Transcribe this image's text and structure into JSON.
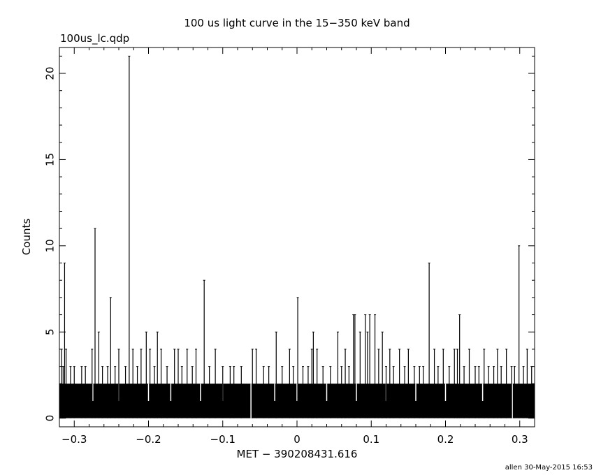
{
  "chart_data": {
    "type": "bar",
    "title": "100 us light curve in the 15−350 keV band",
    "file_label": "100us_lc.qdp",
    "xlabel": "MET − 390208431.616",
    "ylabel": "Counts",
    "footer": "allen 30-May-2015 16:53",
    "xlim": [
      -0.32,
      0.32
    ],
    "ylim": [
      -0.5,
      21.5
    ],
    "x_ticks": [
      -0.3,
      -0.2,
      -0.1,
      0,
      0.1,
      0.2,
      0.3
    ],
    "x_tick_labels": [
      "−0.3",
      "−0.2",
      "−0.1",
      "0",
      "0.1",
      "0.2",
      "0.3"
    ],
    "y_ticks": [
      0,
      5,
      10,
      15,
      20
    ],
    "y_tick_labels": [
      "0",
      "5",
      "10",
      "15",
      "20"
    ],
    "bin_width": 0.0001,
    "baseline_counts": 2,
    "grid": false,
    "legend": "none",
    "bar_color": "#000000",
    "peaks": [
      {
        "x": -0.317,
        "y": 4
      },
      {
        "x": -0.315,
        "y": 3
      },
      {
        "x": -0.313,
        "y": 9
      },
      {
        "x": -0.311,
        "y": 4
      },
      {
        "x": -0.305,
        "y": 3
      },
      {
        "x": -0.3,
        "y": 3
      },
      {
        "x": -0.29,
        "y": 3
      },
      {
        "x": -0.285,
        "y": 3
      },
      {
        "x": -0.276,
        "y": 4
      },
      {
        "x": -0.272,
        "y": 11
      },
      {
        "x": -0.267,
        "y": 5
      },
      {
        "x": -0.262,
        "y": 3
      },
      {
        "x": -0.255,
        "y": 3
      },
      {
        "x": -0.251,
        "y": 7
      },
      {
        "x": -0.245,
        "y": 3
      },
      {
        "x": -0.24,
        "y": 4
      },
      {
        "x": -0.231,
        "y": 3
      },
      {
        "x": -0.226,
        "y": 21
      },
      {
        "x": -0.221,
        "y": 4
      },
      {
        "x": -0.215,
        "y": 3
      },
      {
        "x": -0.21,
        "y": 4
      },
      {
        "x": -0.203,
        "y": 5
      },
      {
        "x": -0.198,
        "y": 4
      },
      {
        "x": -0.192,
        "y": 3
      },
      {
        "x": -0.188,
        "y": 5
      },
      {
        "x": -0.183,
        "y": 4
      },
      {
        "x": -0.175,
        "y": 3
      },
      {
        "x": -0.165,
        "y": 4
      },
      {
        "x": -0.16,
        "y": 4
      },
      {
        "x": -0.155,
        "y": 3
      },
      {
        "x": -0.148,
        "y": 4
      },
      {
        "x": -0.141,
        "y": 3
      },
      {
        "x": -0.136,
        "y": 4
      },
      {
        "x": -0.125,
        "y": 8
      },
      {
        "x": -0.118,
        "y": 3
      },
      {
        "x": -0.11,
        "y": 4
      },
      {
        "x": -0.1,
        "y": 3
      },
      {
        "x": -0.09,
        "y": 3
      },
      {
        "x": -0.085,
        "y": 3
      },
      {
        "x": -0.075,
        "y": 3
      },
      {
        "x": -0.06,
        "y": 4
      },
      {
        "x": -0.055,
        "y": 4
      },
      {
        "x": -0.045,
        "y": 3
      },
      {
        "x": -0.038,
        "y": 3
      },
      {
        "x": -0.028,
        "y": 5
      },
      {
        "x": -0.02,
        "y": 3
      },
      {
        "x": -0.01,
        "y": 4
      },
      {
        "x": -0.005,
        "y": 3
      },
      {
        "x": 0.001,
        "y": 7
      },
      {
        "x": 0.008,
        "y": 3
      },
      {
        "x": 0.015,
        "y": 3
      },
      {
        "x": 0.02,
        "y": 4
      },
      {
        "x": 0.022,
        "y": 5
      },
      {
        "x": 0.027,
        "y": 4
      },
      {
        "x": 0.035,
        "y": 3
      },
      {
        "x": 0.045,
        "y": 3
      },
      {
        "x": 0.055,
        "y": 5
      },
      {
        "x": 0.06,
        "y": 3
      },
      {
        "x": 0.065,
        "y": 4
      },
      {
        "x": 0.07,
        "y": 3
      },
      {
        "x": 0.076,
        "y": 6
      },
      {
        "x": 0.078,
        "y": 6
      },
      {
        "x": 0.085,
        "y": 5
      },
      {
        "x": 0.092,
        "y": 6
      },
      {
        "x": 0.095,
        "y": 5
      },
      {
        "x": 0.098,
        "y": 6
      },
      {
        "x": 0.105,
        "y": 6
      },
      {
        "x": 0.11,
        "y": 4
      },
      {
        "x": 0.115,
        "y": 5
      },
      {
        "x": 0.12,
        "y": 3
      },
      {
        "x": 0.125,
        "y": 4
      },
      {
        "x": 0.13,
        "y": 3
      },
      {
        "x": 0.138,
        "y": 4
      },
      {
        "x": 0.145,
        "y": 3
      },
      {
        "x": 0.15,
        "y": 4
      },
      {
        "x": 0.158,
        "y": 3
      },
      {
        "x": 0.165,
        "y": 3
      },
      {
        "x": 0.17,
        "y": 3
      },
      {
        "x": 0.178,
        "y": 9
      },
      {
        "x": 0.185,
        "y": 4
      },
      {
        "x": 0.19,
        "y": 3
      },
      {
        "x": 0.197,
        "y": 4
      },
      {
        "x": 0.205,
        "y": 3
      },
      {
        "x": 0.212,
        "y": 4
      },
      {
        "x": 0.216,
        "y": 4
      },
      {
        "x": 0.219,
        "y": 6
      },
      {
        "x": 0.225,
        "y": 3
      },
      {
        "x": 0.232,
        "y": 4
      },
      {
        "x": 0.24,
        "y": 3
      },
      {
        "x": 0.245,
        "y": 3
      },
      {
        "x": 0.252,
        "y": 4
      },
      {
        "x": 0.258,
        "y": 3
      },
      {
        "x": 0.265,
        "y": 3
      },
      {
        "x": 0.27,
        "y": 4
      },
      {
        "x": 0.275,
        "y": 3
      },
      {
        "x": 0.282,
        "y": 4
      },
      {
        "x": 0.289,
        "y": 3
      },
      {
        "x": 0.293,
        "y": 3
      },
      {
        "x": 0.299,
        "y": 10
      },
      {
        "x": 0.305,
        "y": 3
      },
      {
        "x": 0.31,
        "y": 4
      },
      {
        "x": 0.316,
        "y": 3
      }
    ],
    "dips": [
      {
        "x": -0.275,
        "y": 1
      },
      {
        "x": -0.24,
        "y": 1
      },
      {
        "x": -0.2,
        "y": 1
      },
      {
        "x": -0.17,
        "y": 1
      },
      {
        "x": -0.13,
        "y": 1
      },
      {
        "x": -0.1,
        "y": 1
      },
      {
        "x": -0.062,
        "y": 0
      },
      {
        "x": -0.03,
        "y": 1
      },
      {
        "x": 0.0,
        "y": 1
      },
      {
        "x": 0.04,
        "y": 1
      },
      {
        "x": 0.08,
        "y": 1
      },
      {
        "x": 0.12,
        "y": 1
      },
      {
        "x": 0.16,
        "y": 1
      },
      {
        "x": 0.2,
        "y": 1
      },
      {
        "x": 0.25,
        "y": 1
      },
      {
        "x": 0.29,
        "y": 0
      }
    ]
  }
}
